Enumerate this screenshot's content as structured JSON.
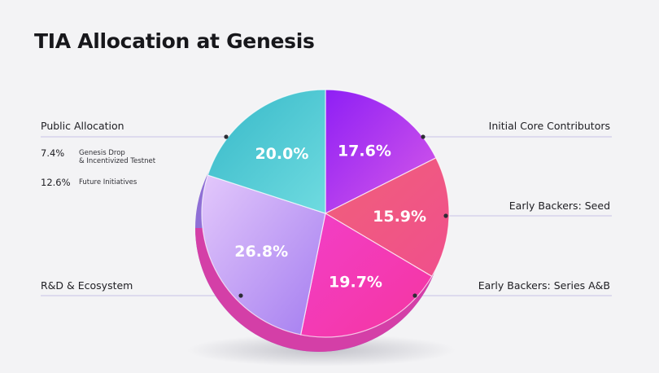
{
  "chart_data": {
    "type": "pie",
    "title": "TIA Allocation at Genesis",
    "slices": [
      {
        "label": "Initial Core Contributors",
        "value": 17.6,
        "value_label": "17.6%",
        "color": "#b23cf0"
      },
      {
        "label": "Early Backers: Seed",
        "value": 15.9,
        "value_label": "15.9%",
        "color": "#f2566e"
      },
      {
        "label": "Early Backers: Series A&B",
        "value": 19.7,
        "value_label": "19.7%",
        "color": "#f23cb4"
      },
      {
        "label": "R&D & Ecosystem",
        "value": 26.8,
        "value_label": "26.8%",
        "color": "#c09af5"
      },
      {
        "label": "Public Allocation",
        "value": 20.0,
        "value_label": "20.0%",
        "color": "#45c6d2",
        "breakdown": [
          {
            "pct": "7.4%",
            "text_1": "Genesis Drop",
            "text_2": "& Incentivized Testnet"
          },
          {
            "pct": "12.6%",
            "text_1": "Future Initiatives",
            "text_2": ""
          }
        ]
      }
    ]
  }
}
